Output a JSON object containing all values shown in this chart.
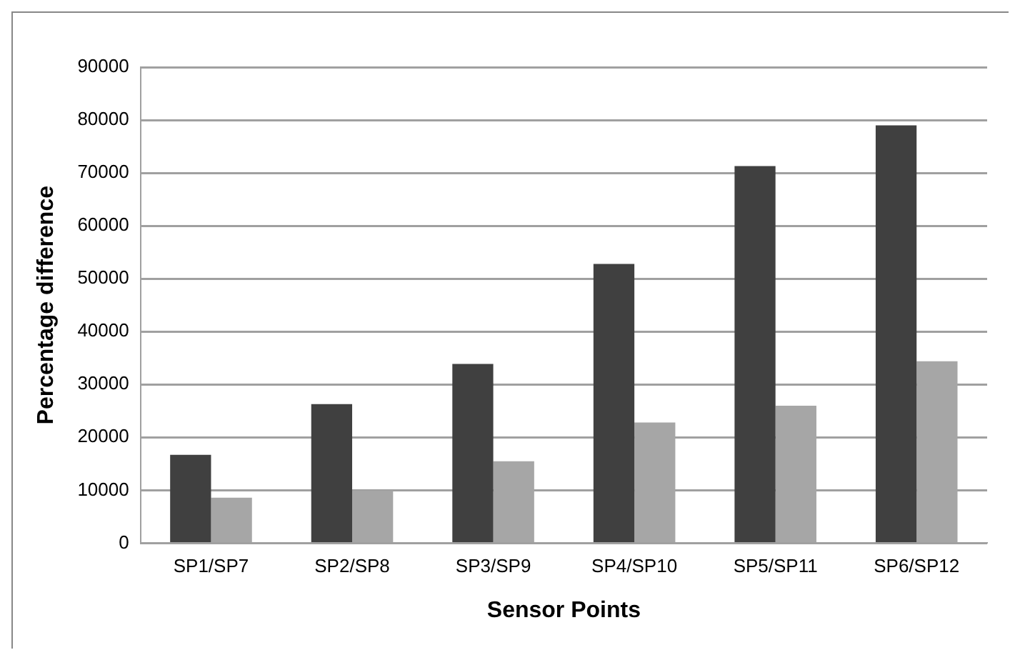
{
  "chart_data": {
    "type": "bar",
    "xlabel": "Sensor Points",
    "ylabel": "Percentage difference",
    "categories": [
      "SP1/SP7",
      "SP2/SP8",
      "SP3/SP9",
      "SP4/SP10",
      "SP5/SP11",
      "SP6/SP12"
    ],
    "series": [
      {
        "color": "#404040",
        "values": [
          16700,
          26300,
          33900,
          52800,
          71300,
          79000
        ]
      },
      {
        "color": "#a6a6a6",
        "values": [
          8600,
          9900,
          15500,
          22800,
          26000,
          34400
        ]
      }
    ],
    "ylim": [
      0,
      90000
    ],
    "yticks": [
      0,
      10000,
      20000,
      30000,
      40000,
      50000,
      60000,
      70000,
      80000,
      90000
    ],
    "grid": "y",
    "legend": false
  }
}
